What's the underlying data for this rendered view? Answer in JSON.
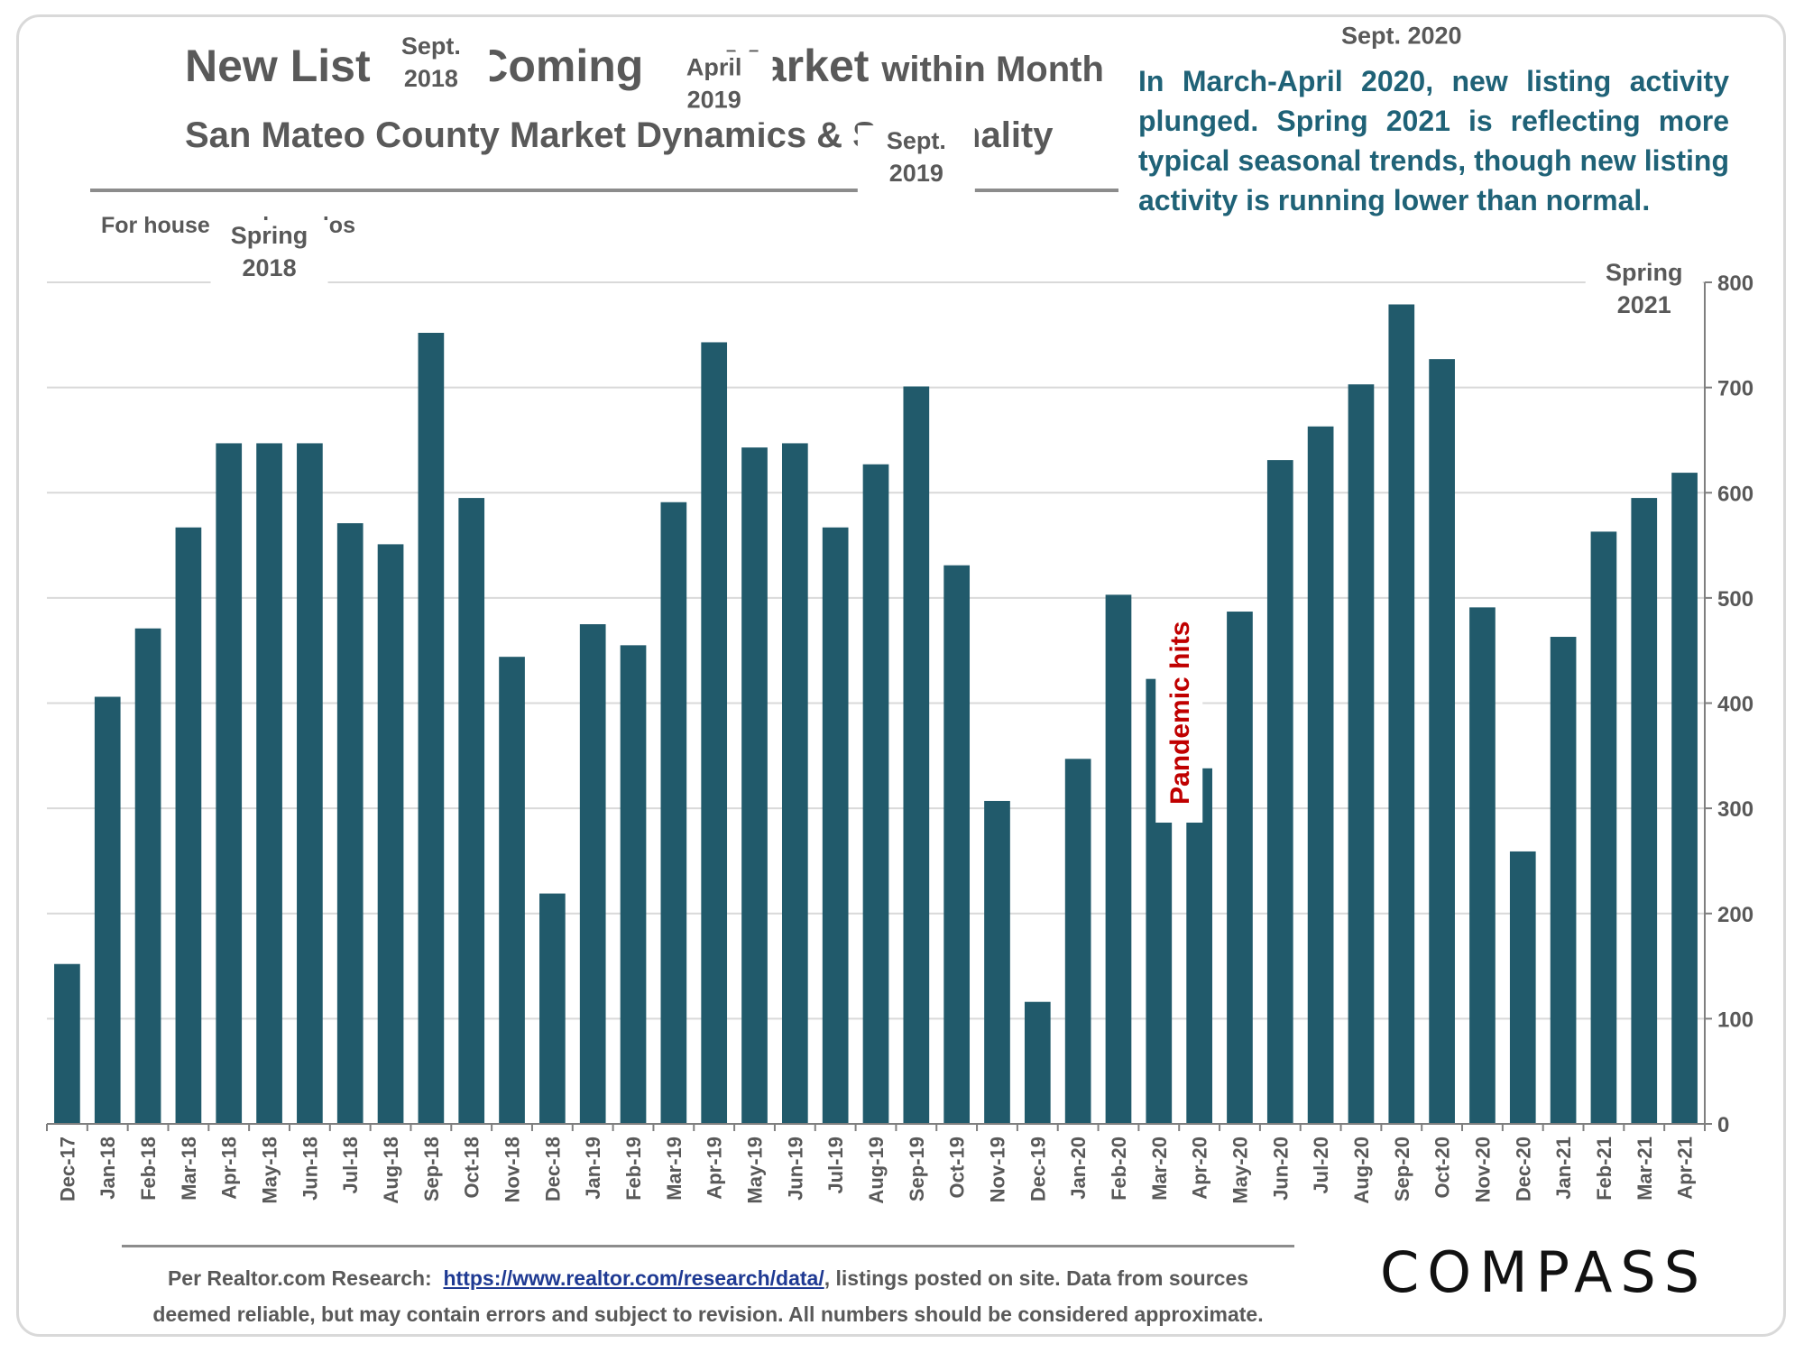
{
  "header": {
    "title": "New Listings Coming on Market",
    "title_suffix": "within Month",
    "subtitle": "San Mateo County Market Dynamics & Seasonality",
    "note": "In March-April 2020, new listing activity plunged. Spring 2021 is reflecting more typical seasonal trends, though new listing activity is running lower than normal.",
    "scope": "For houses and condos"
  },
  "colors": {
    "bar": "#215a6b",
    "accent_text": "#1f6277",
    "pandemic": "#c00000"
  },
  "chart_data": {
    "type": "bar",
    "title": "New Listings Coming on Market within Month",
    "categories": [
      "Dec-17",
      "Jan-18",
      "Feb-18",
      "Mar-18",
      "Apr-18",
      "May-18",
      "Jun-18",
      "Jul-18",
      "Aug-18",
      "Sep-18",
      "Oct-18",
      "Nov-18",
      "Dec-18",
      "Jan-19",
      "Feb-19",
      "Mar-19",
      "Apr-19",
      "May-19",
      "Jun-19",
      "Jul-19",
      "Aug-19",
      "Sep-19",
      "Oct-19",
      "Nov-19",
      "Dec-19",
      "Jan-20",
      "Feb-20",
      "Mar-20",
      "Apr-20",
      "May-20",
      "Jun-20",
      "Jul-20",
      "Aug-20",
      "Sep-20",
      "Oct-20",
      "Nov-20",
      "Dec-20",
      "Jan-21",
      "Feb-21",
      "Mar-21",
      "Apr-21"
    ],
    "values": [
      152,
      406,
      471,
      567,
      647,
      647,
      647,
      571,
      551,
      752,
      595,
      444,
      219,
      475,
      455,
      591,
      743,
      643,
      647,
      567,
      627,
      701,
      531,
      307,
      116,
      347,
      503,
      423,
      338,
      487,
      631,
      663,
      703,
      779,
      727,
      491,
      259,
      463,
      563,
      595,
      619
    ],
    "ylim": [
      0,
      800
    ],
    "yticks": [
      "0",
      "100",
      "200",
      "300",
      "400",
      "500",
      "600",
      "700",
      "800"
    ],
    "y_axis_side": "right",
    "grid": true,
    "annotations": [
      {
        "lines": [
          "Spring",
          "2018"
        ],
        "category": "May-18",
        "y": 830
      },
      {
        "lines": [
          "Sept.",
          "2018"
        ],
        "category": "Sep-18",
        "y": 1010
      },
      {
        "lines": [
          "April",
          "2019"
        ],
        "category": "Apr-19",
        "y": 990
      },
      {
        "lines": [
          "Sept.",
          "2019"
        ],
        "category": "Sep-19",
        "y": 920
      },
      {
        "lines": [
          "Sept. 2020"
        ],
        "category": "Sep-20",
        "y": 1020
      },
      {
        "lines": [
          "Spring",
          "2021"
        ],
        "category": "Mar-21",
        "y": 795
      }
    ],
    "pandemic_label": "Pandemic hits"
  },
  "footer": {
    "prefix": "Per Realtor.com Research:",
    "link": "https://www.realtor.com/research/data/",
    "line1_rest": ", listings posted on site. Data from sources",
    "line2": "deemed reliable, but may contain errors and subject to revision. All numbers should be considered approximate.",
    "logo": "COMPASS"
  }
}
